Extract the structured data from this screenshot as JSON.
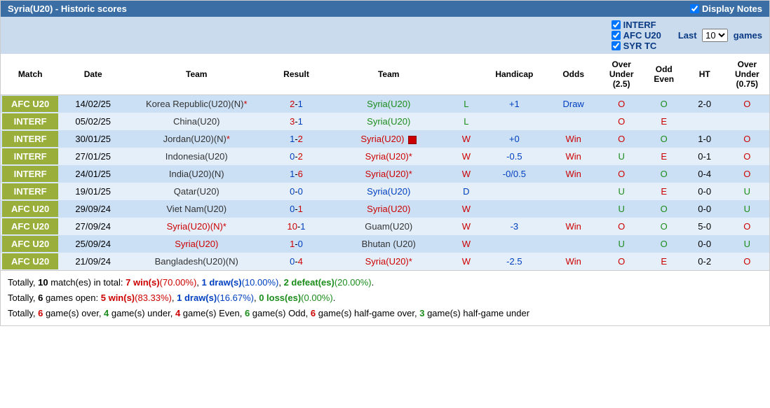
{
  "header": {
    "title": "Syria(U20) - Historic scores",
    "displayNotesLabel": "Display Notes",
    "displayNotesChecked": true
  },
  "filters": {
    "items": [
      {
        "label": "INTERF",
        "checked": true
      },
      {
        "label": "AFC U20",
        "checked": true
      },
      {
        "label": "SYR TC",
        "checked": true
      }
    ],
    "lastPrefix": "Last",
    "lastSuffix": "games",
    "lastOptions": [
      "10"
    ],
    "lastSelected": "10"
  },
  "columns": [
    "Match",
    "Date",
    "Team",
    "Result",
    "Team",
    "",
    "Handicap",
    "Odds",
    "Over Under (2.5)",
    "Odd Even",
    "HT",
    "Over Under (0.75)"
  ],
  "rows": [
    {
      "comp": "AFC U20",
      "date": "14/02/25",
      "home": "Korea Republic(U20)(N)",
      "homeAst": true,
      "homeColor": "dark",
      "score": "2-1",
      "scoreL": "red",
      "scoreR": "blue",
      "away": "Syria(U20)",
      "awayAst": false,
      "awayColor": "green",
      "awayIcon": false,
      "res": "L",
      "resColor": "green",
      "hcap": "+1",
      "hcapColor": "blue",
      "odds": "Draw",
      "oddsColor": "blue",
      "ou25": "O",
      "ou25Color": "red",
      "oe": "O",
      "oeColor": "green",
      "ht": "2-0",
      "ou075": "O",
      "ou075Color": "red"
    },
    {
      "comp": "INTERF",
      "date": "05/02/25",
      "home": "China(U20)",
      "homeAst": false,
      "homeColor": "dark",
      "score": "3-1",
      "scoreL": "red",
      "scoreR": "blue",
      "away": "Syria(U20)",
      "awayAst": false,
      "awayColor": "green",
      "awayIcon": false,
      "res": "L",
      "resColor": "green",
      "hcap": "",
      "hcapColor": "blue",
      "odds": "",
      "oddsColor": "red",
      "ou25": "O",
      "ou25Color": "red",
      "oe": "E",
      "oeColor": "red",
      "ht": "",
      "ou075": "",
      "ou075Color": "red"
    },
    {
      "comp": "INTERF",
      "date": "30/01/25",
      "home": "Jordan(U20)(N)",
      "homeAst": true,
      "homeColor": "dark",
      "score": "1-2",
      "scoreL": "blue",
      "scoreR": "red",
      "away": "Syria(U20)",
      "awayAst": false,
      "awayColor": "red",
      "awayIcon": true,
      "res": "W",
      "resColor": "red",
      "hcap": "+0",
      "hcapColor": "blue",
      "odds": "Win",
      "oddsColor": "red",
      "ou25": "O",
      "ou25Color": "red",
      "oe": "O",
      "oeColor": "green",
      "ht": "1-0",
      "ou075": "O",
      "ou075Color": "red"
    },
    {
      "comp": "INTERF",
      "date": "27/01/25",
      "home": "Indonesia(U20)",
      "homeAst": false,
      "homeColor": "dark",
      "score": "0-2",
      "scoreL": "blue",
      "scoreR": "red",
      "away": "Syria(U20)",
      "awayAst": true,
      "awayColor": "red",
      "awayIcon": false,
      "res": "W",
      "resColor": "red",
      "hcap": "-0.5",
      "hcapColor": "blue",
      "odds": "Win",
      "oddsColor": "red",
      "ou25": "U",
      "ou25Color": "green",
      "oe": "E",
      "oeColor": "red",
      "ht": "0-1",
      "ou075": "O",
      "ou075Color": "red"
    },
    {
      "comp": "INTERF",
      "date": "24/01/25",
      "home": "India(U20)(N)",
      "homeAst": false,
      "homeColor": "dark",
      "score": "1-6",
      "scoreL": "blue",
      "scoreR": "red",
      "away": "Syria(U20)",
      "awayAst": true,
      "awayColor": "red",
      "awayIcon": false,
      "res": "W",
      "resColor": "red",
      "hcap": "-0/0.5",
      "hcapColor": "blue",
      "odds": "Win",
      "oddsColor": "red",
      "ou25": "O",
      "ou25Color": "red",
      "oe": "O",
      "oeColor": "green",
      "ht": "0-4",
      "ou075": "O",
      "ou075Color": "red"
    },
    {
      "comp": "INTERF",
      "date": "19/01/25",
      "home": "Qatar(U20)",
      "homeAst": false,
      "homeColor": "dark",
      "score": "0-0",
      "scoreL": "blue",
      "scoreR": "blue",
      "away": "Syria(U20)",
      "awayAst": false,
      "awayColor": "blue",
      "awayIcon": false,
      "res": "D",
      "resColor": "blue",
      "hcap": "",
      "hcapColor": "blue",
      "odds": "",
      "oddsColor": "red",
      "ou25": "U",
      "ou25Color": "green",
      "oe": "E",
      "oeColor": "red",
      "ht": "0-0",
      "ou075": "U",
      "ou075Color": "green"
    },
    {
      "comp": "AFC U20",
      "date": "29/09/24",
      "home": "Viet Nam(U20)",
      "homeAst": false,
      "homeColor": "dark",
      "score": "0-1",
      "scoreL": "blue",
      "scoreR": "red",
      "away": "Syria(U20)",
      "awayAst": false,
      "awayColor": "red",
      "awayIcon": false,
      "res": "W",
      "resColor": "red",
      "hcap": "",
      "hcapColor": "blue",
      "odds": "",
      "oddsColor": "red",
      "ou25": "U",
      "ou25Color": "green",
      "oe": "O",
      "oeColor": "green",
      "ht": "0-0",
      "ou075": "U",
      "ou075Color": "green"
    },
    {
      "comp": "AFC U20",
      "date": "27/09/24",
      "home": "Syria(U20)(N)",
      "homeAst": true,
      "homeColor": "red",
      "score": "10-1",
      "scoreL": "red",
      "scoreR": "blue",
      "away": "Guam(U20)",
      "awayAst": false,
      "awayColor": "dark",
      "awayIcon": false,
      "res": "W",
      "resColor": "red",
      "hcap": "-3",
      "hcapColor": "blue",
      "odds": "Win",
      "oddsColor": "red",
      "ou25": "O",
      "ou25Color": "red",
      "oe": "O",
      "oeColor": "green",
      "ht": "5-0",
      "ou075": "O",
      "ou075Color": "red"
    },
    {
      "comp": "AFC U20",
      "date": "25/09/24",
      "home": "Syria(U20)",
      "homeAst": false,
      "homeColor": "red",
      "score": "1-0",
      "scoreL": "red",
      "scoreR": "blue",
      "away": "Bhutan (U20)",
      "awayAst": false,
      "awayColor": "dark",
      "awayIcon": false,
      "res": "W",
      "resColor": "red",
      "hcap": "",
      "hcapColor": "blue",
      "odds": "",
      "oddsColor": "red",
      "ou25": "U",
      "ou25Color": "green",
      "oe": "O",
      "oeColor": "green",
      "ht": "0-0",
      "ou075": "U",
      "ou075Color": "green"
    },
    {
      "comp": "AFC U20",
      "date": "21/09/24",
      "home": "Bangladesh(U20)(N)",
      "homeAst": false,
      "homeColor": "dark",
      "score": "0-4",
      "scoreL": "blue",
      "scoreR": "red",
      "away": "Syria(U20)",
      "awayAst": true,
      "awayColor": "red",
      "awayIcon": false,
      "res": "W",
      "resColor": "red",
      "hcap": "-2.5",
      "hcapColor": "blue",
      "odds": "Win",
      "oddsColor": "red",
      "ou25": "O",
      "ou25Color": "red",
      "oe": "E",
      "oeColor": "red",
      "ht": "0-2",
      "ou075": "O",
      "ou075Color": "red"
    }
  ],
  "summary": {
    "line1": {
      "t1": "Totally, ",
      "b1": "10",
      "t2": " match(es) in total: ",
      "r1": "7 win(s)",
      "r1p": "(70.00%)",
      "t3": ", ",
      "b2": "1 draw(s)",
      "b2p": "(10.00%)",
      "t4": ", ",
      "g1": "2 defeat(es)",
      "g1p": "(20.00%)",
      "t5": "."
    },
    "line2": {
      "t1": "Totally, ",
      "b1": "6",
      "t2": " games open: ",
      "r1": "5 win(s)",
      "r1p": "(83.33%)",
      "t3": ", ",
      "b2": "1 draw(s)",
      "b2p": "(16.67%)",
      "t4": ", ",
      "g1": "0 loss(es)",
      "g1p": "(0.00%)",
      "t5": "."
    },
    "line3": {
      "t1": "Totally, ",
      "r1": "6",
      "t2": " game(s) over, ",
      "g1": "4",
      "t3": " game(s) under, ",
      "r2": "4",
      "t4": " game(s) Even, ",
      "g2": "6",
      "t5": " game(s) Odd, ",
      "r3": "6",
      "t6": " game(s) half-game over, ",
      "g3": "3",
      "t7": " game(s) half-game under"
    }
  }
}
